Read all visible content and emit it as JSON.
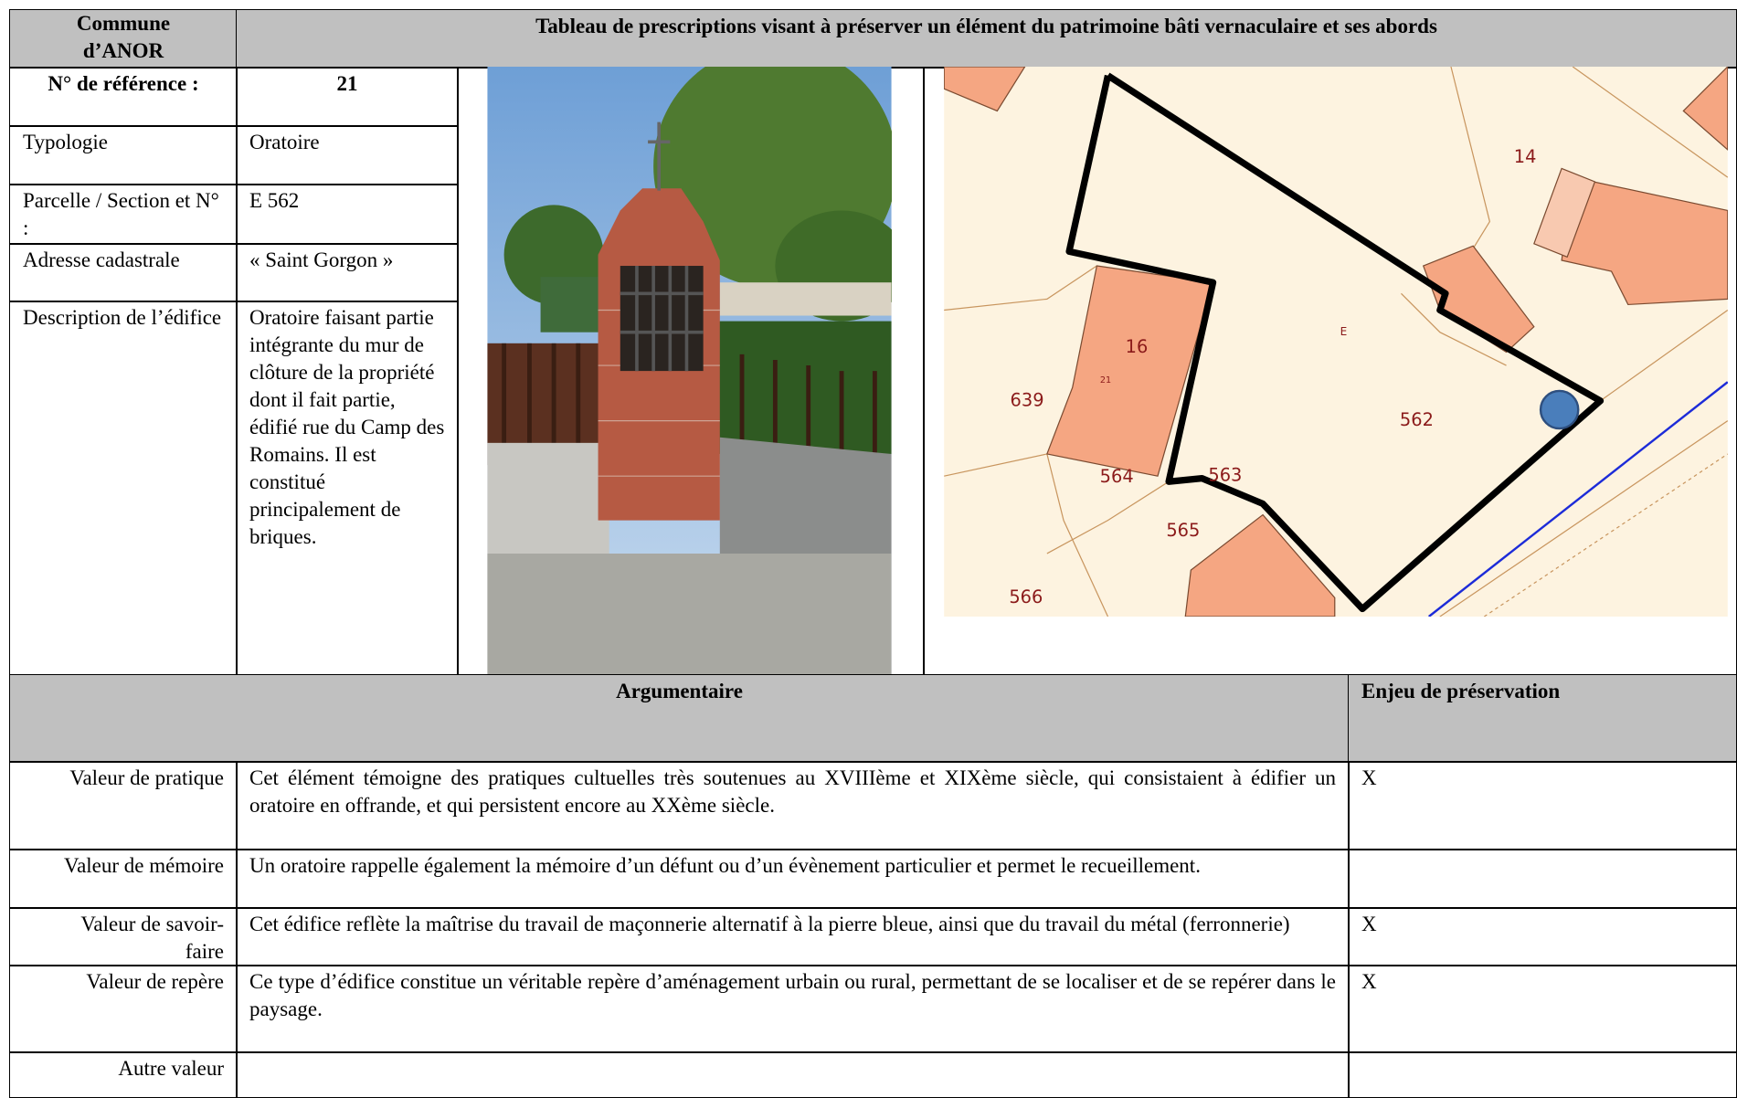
{
  "header": {
    "commune": "Commune d’ANOR",
    "title": "Tableau de prescriptions visant à préserver un élément du patrimoine bâti vernaculaire et ses abords"
  },
  "reference": {
    "label": "N° de référence :",
    "value": "21"
  },
  "fields": [
    {
      "label": "Typologie",
      "value": "Oratoire"
    },
    {
      "label": "Parcelle / Section et N° :",
      "value": "E 562"
    },
    {
      "label": "Adresse cadastrale",
      "value": "« Saint Gorgon »"
    },
    {
      "label": "Description de l’édifice",
      "value": "Oratoire faisant partie intégrante du mur de clôture de la propriété dont il fait partie, édifié rue du Camp des Romains. Il est constitué principalement de briques."
    }
  ],
  "map": {
    "labels": [
      "14",
      "E",
      "16",
      "21",
      "639",
      "562",
      "564",
      "563",
      "565",
      "566"
    ]
  },
  "argumentaire": {
    "header": "Argumentaire",
    "enjeu_header": "Enjeu de préservation",
    "rows": [
      {
        "label": "Valeur de pratique",
        "text": "Cet élément témoigne des pratiques cultuelles très soutenues au XVIIIème et XIXème siècle, qui consistaient à édifier un oratoire en offrande, et qui persistent encore au XXème siècle.",
        "enjeu": "X"
      },
      {
        "label": "Valeur de mémoire",
        "text": "Un oratoire rappelle également la mémoire d’un défunt ou d’un évènement particulier et permet le recueillement."
      },
      {
        "label": "Valeur de savoir-faire",
        "text": "Cet édifice reflète la maîtrise du travail de maçonnerie alternatif à la pierre bleue, ainsi que du travail du métal (ferronnerie)",
        "enjeu": "X"
      },
      {
        "label": "Valeur de repère",
        "text": "Ce type d’édifice constitue un véritable repère d’aménagement urbain ou rural, permettant de se localiser et de se repérer dans le paysage.",
        "enjeu": "X"
      },
      {
        "label": "Autre valeur"
      }
    ]
  }
}
